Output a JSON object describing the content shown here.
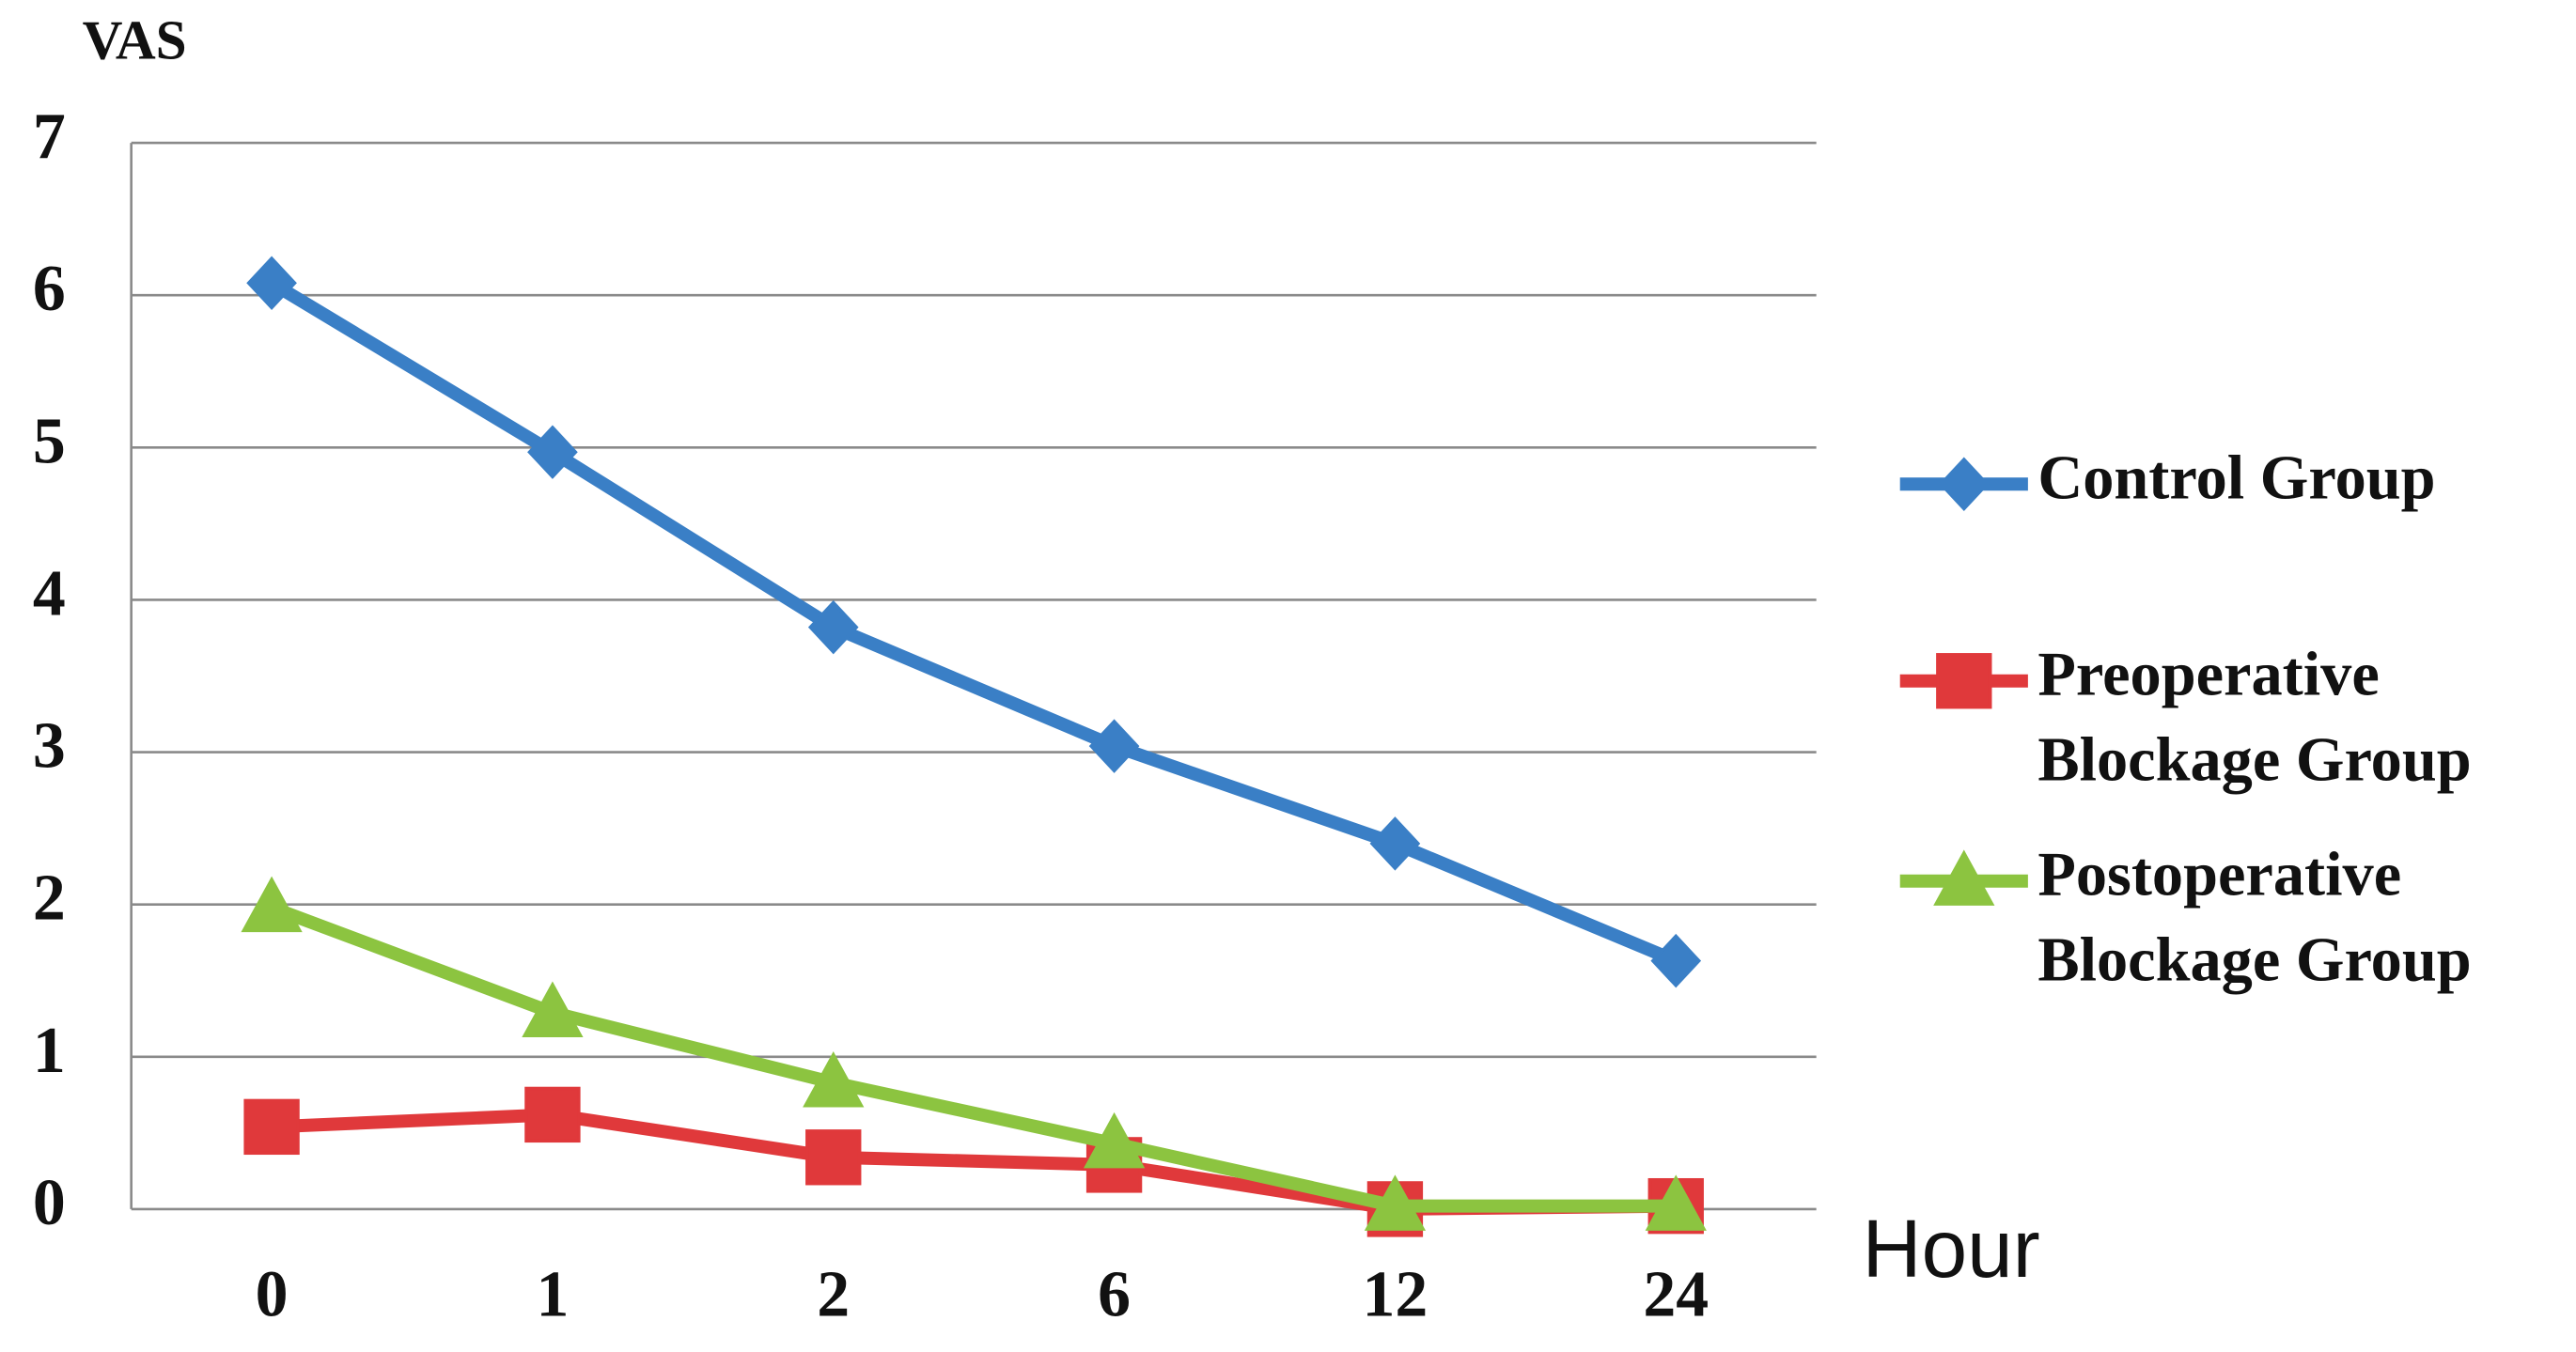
{
  "chart_data": {
    "type": "line",
    "y_label": "VAS",
    "x_label": "Hour",
    "categories": [
      "0",
      "1",
      "2",
      "6",
      "12",
      "24"
    ],
    "ylim": [
      0,
      7
    ],
    "yticks": [
      0,
      1,
      2,
      3,
      4,
      5,
      6,
      7
    ],
    "grid": true,
    "legend": "right",
    "series": [
      {
        "name": "Control Group",
        "color": "#3a7fc6",
        "marker": "diamond",
        "values": [
          6.08,
          4.97,
          3.82,
          3.04,
          2.4,
          1.63
        ]
      },
      {
        "name": "Preoperative Blockage Group",
        "color": "#e0393b",
        "marker": "square",
        "values": [
          0.54,
          0.62,
          0.34,
          0.29,
          0.0,
          0.02
        ]
      },
      {
        "name": "Postoperative Blockage Group",
        "color": "#8cc440",
        "marker": "triangle",
        "values": [
          1.98,
          1.29,
          0.83,
          0.43,
          0.02,
          0.02
        ]
      }
    ]
  }
}
